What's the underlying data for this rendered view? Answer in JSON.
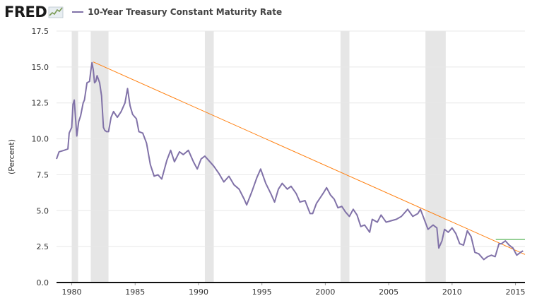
{
  "header": {
    "logo_text": "FRED",
    "logo_icon": "chart-line-icon",
    "legend_label": "10-Year Treasury Constant Maturity Rate"
  },
  "colors": {
    "series": "#8172a8",
    "trend": "#ff7f0e",
    "flat": "#2ca02c",
    "recession": "#e6e6e6",
    "grid": "#e8e8e8"
  },
  "chart_data": {
    "type": "line",
    "title": "10-Year Treasury Constant Maturity Rate",
    "xlabel": "",
    "ylabel": "(Percent)",
    "xlim": [
      1978.8,
      2015.75
    ],
    "ylim": [
      0,
      17.5
    ],
    "grid": true,
    "y_ticks": [
      "0.0",
      "2.5",
      "5.0",
      "7.5",
      "10.0",
      "12.5",
      "15.0",
      "17.5"
    ],
    "x_ticks": [
      "1980",
      "1985",
      "1990",
      "1995",
      "2000",
      "2005",
      "2010",
      "2015"
    ],
    "recessions": [
      [
        1980.0,
        1980.5
      ],
      [
        1981.5,
        1982.9
      ],
      [
        1990.5,
        1991.2
      ],
      [
        2001.2,
        2001.9
      ],
      [
        2007.9,
        2009.5
      ]
    ],
    "series": [
      {
        "name": "10-Year Treasury Constant Maturity Rate",
        "x": [
          1978.8,
          1979.0,
          1979.4,
          1979.7,
          1979.8,
          1980.0,
          1980.1,
          1980.2,
          1980.4,
          1980.55,
          1980.7,
          1980.9,
          1981.0,
          1981.2,
          1981.4,
          1981.5,
          1981.6,
          1981.7,
          1981.8,
          1981.9,
          1982.0,
          1982.2,
          1982.35,
          1982.5,
          1982.6,
          1982.75,
          1982.9,
          1983.1,
          1983.3,
          1983.6,
          1983.9,
          1984.2,
          1984.4,
          1984.6,
          1984.8,
          1985.1,
          1985.3,
          1985.6,
          1985.9,
          1986.2,
          1986.5,
          1986.8,
          1987.1,
          1987.5,
          1987.8,
          1988.1,
          1988.5,
          1988.8,
          1989.2,
          1989.6,
          1989.9,
          1990.2,
          1990.5,
          1990.8,
          1991.2,
          1991.6,
          1992.0,
          1992.4,
          1992.8,
          1993.2,
          1993.6,
          1993.8,
          1994.2,
          1994.6,
          1994.9,
          1995.3,
          1995.7,
          1996.0,
          1996.3,
          1996.6,
          1997.0,
          1997.3,
          1997.7,
          1998.0,
          1998.4,
          1998.8,
          1999.0,
          1999.3,
          1999.6,
          1999.9,
          2000.1,
          2000.4,
          2000.7,
          2001.0,
          2001.3,
          2001.6,
          2001.9,
          2002.2,
          2002.5,
          2002.8,
          2003.1,
          2003.5,
          2003.7,
          2004.1,
          2004.4,
          2004.8,
          2005.2,
          2005.6,
          2006.0,
          2006.5,
          2006.9,
          2007.3,
          2007.5,
          2007.8,
          2008.1,
          2008.5,
          2008.8,
          2008.95,
          2009.2,
          2009.4,
          2009.7,
          2010.0,
          2010.3,
          2010.6,
          2010.9,
          2011.2,
          2011.5,
          2011.8,
          2012.1,
          2012.5,
          2012.8,
          2013.1,
          2013.4,
          2013.7,
          2013.9,
          2014.2,
          2014.5,
          2014.8,
          2015.1,
          2015.4,
          2015.6
        ],
        "values": [
          8.6,
          9.1,
          9.2,
          9.3,
          10.4,
          10.8,
          12.4,
          12.7,
          10.2,
          11.2,
          11.6,
          12.5,
          12.7,
          13.9,
          14.0,
          14.7,
          15.3,
          14.8,
          13.9,
          14.0,
          14.4,
          13.9,
          13.0,
          10.8,
          10.6,
          10.5,
          10.5,
          11.5,
          11.9,
          11.5,
          11.9,
          12.5,
          13.5,
          12.3,
          11.7,
          11.4,
          10.5,
          10.4,
          9.7,
          8.2,
          7.4,
          7.5,
          7.2,
          8.5,
          9.2,
          8.4,
          9.1,
          8.9,
          9.2,
          8.4,
          7.9,
          8.6,
          8.8,
          8.5,
          8.1,
          7.6,
          7.0,
          7.4,
          6.8,
          6.5,
          5.8,
          5.4,
          6.3,
          7.3,
          7.9,
          6.9,
          6.2,
          5.6,
          6.5,
          6.9,
          6.5,
          6.7,
          6.2,
          5.6,
          5.7,
          4.8,
          4.8,
          5.5,
          5.9,
          6.3,
          6.6,
          6.1,
          5.8,
          5.2,
          5.3,
          4.9,
          4.6,
          5.1,
          4.7,
          3.9,
          4.0,
          3.5,
          4.4,
          4.2,
          4.7,
          4.2,
          4.3,
          4.4,
          4.6,
          5.1,
          4.6,
          4.8,
          5.1,
          4.4,
          3.7,
          4.0,
          3.8,
          2.4,
          2.9,
          3.7,
          3.5,
          3.8,
          3.4,
          2.7,
          2.6,
          3.6,
          3.2,
          2.1,
          2.0,
          1.6,
          1.8,
          1.9,
          1.8,
          2.7,
          2.7,
          2.9,
          2.6,
          2.4,
          1.9,
          2.1,
          2.2
        ]
      },
      {
        "name": "Trend",
        "x": [
          1981.7,
          2015.75
        ],
        "values": [
          15.35,
          1.95
        ]
      },
      {
        "name": "Flat",
        "x": [
          2013.45,
          2015.75
        ],
        "values": [
          3.0,
          3.0
        ]
      }
    ]
  }
}
